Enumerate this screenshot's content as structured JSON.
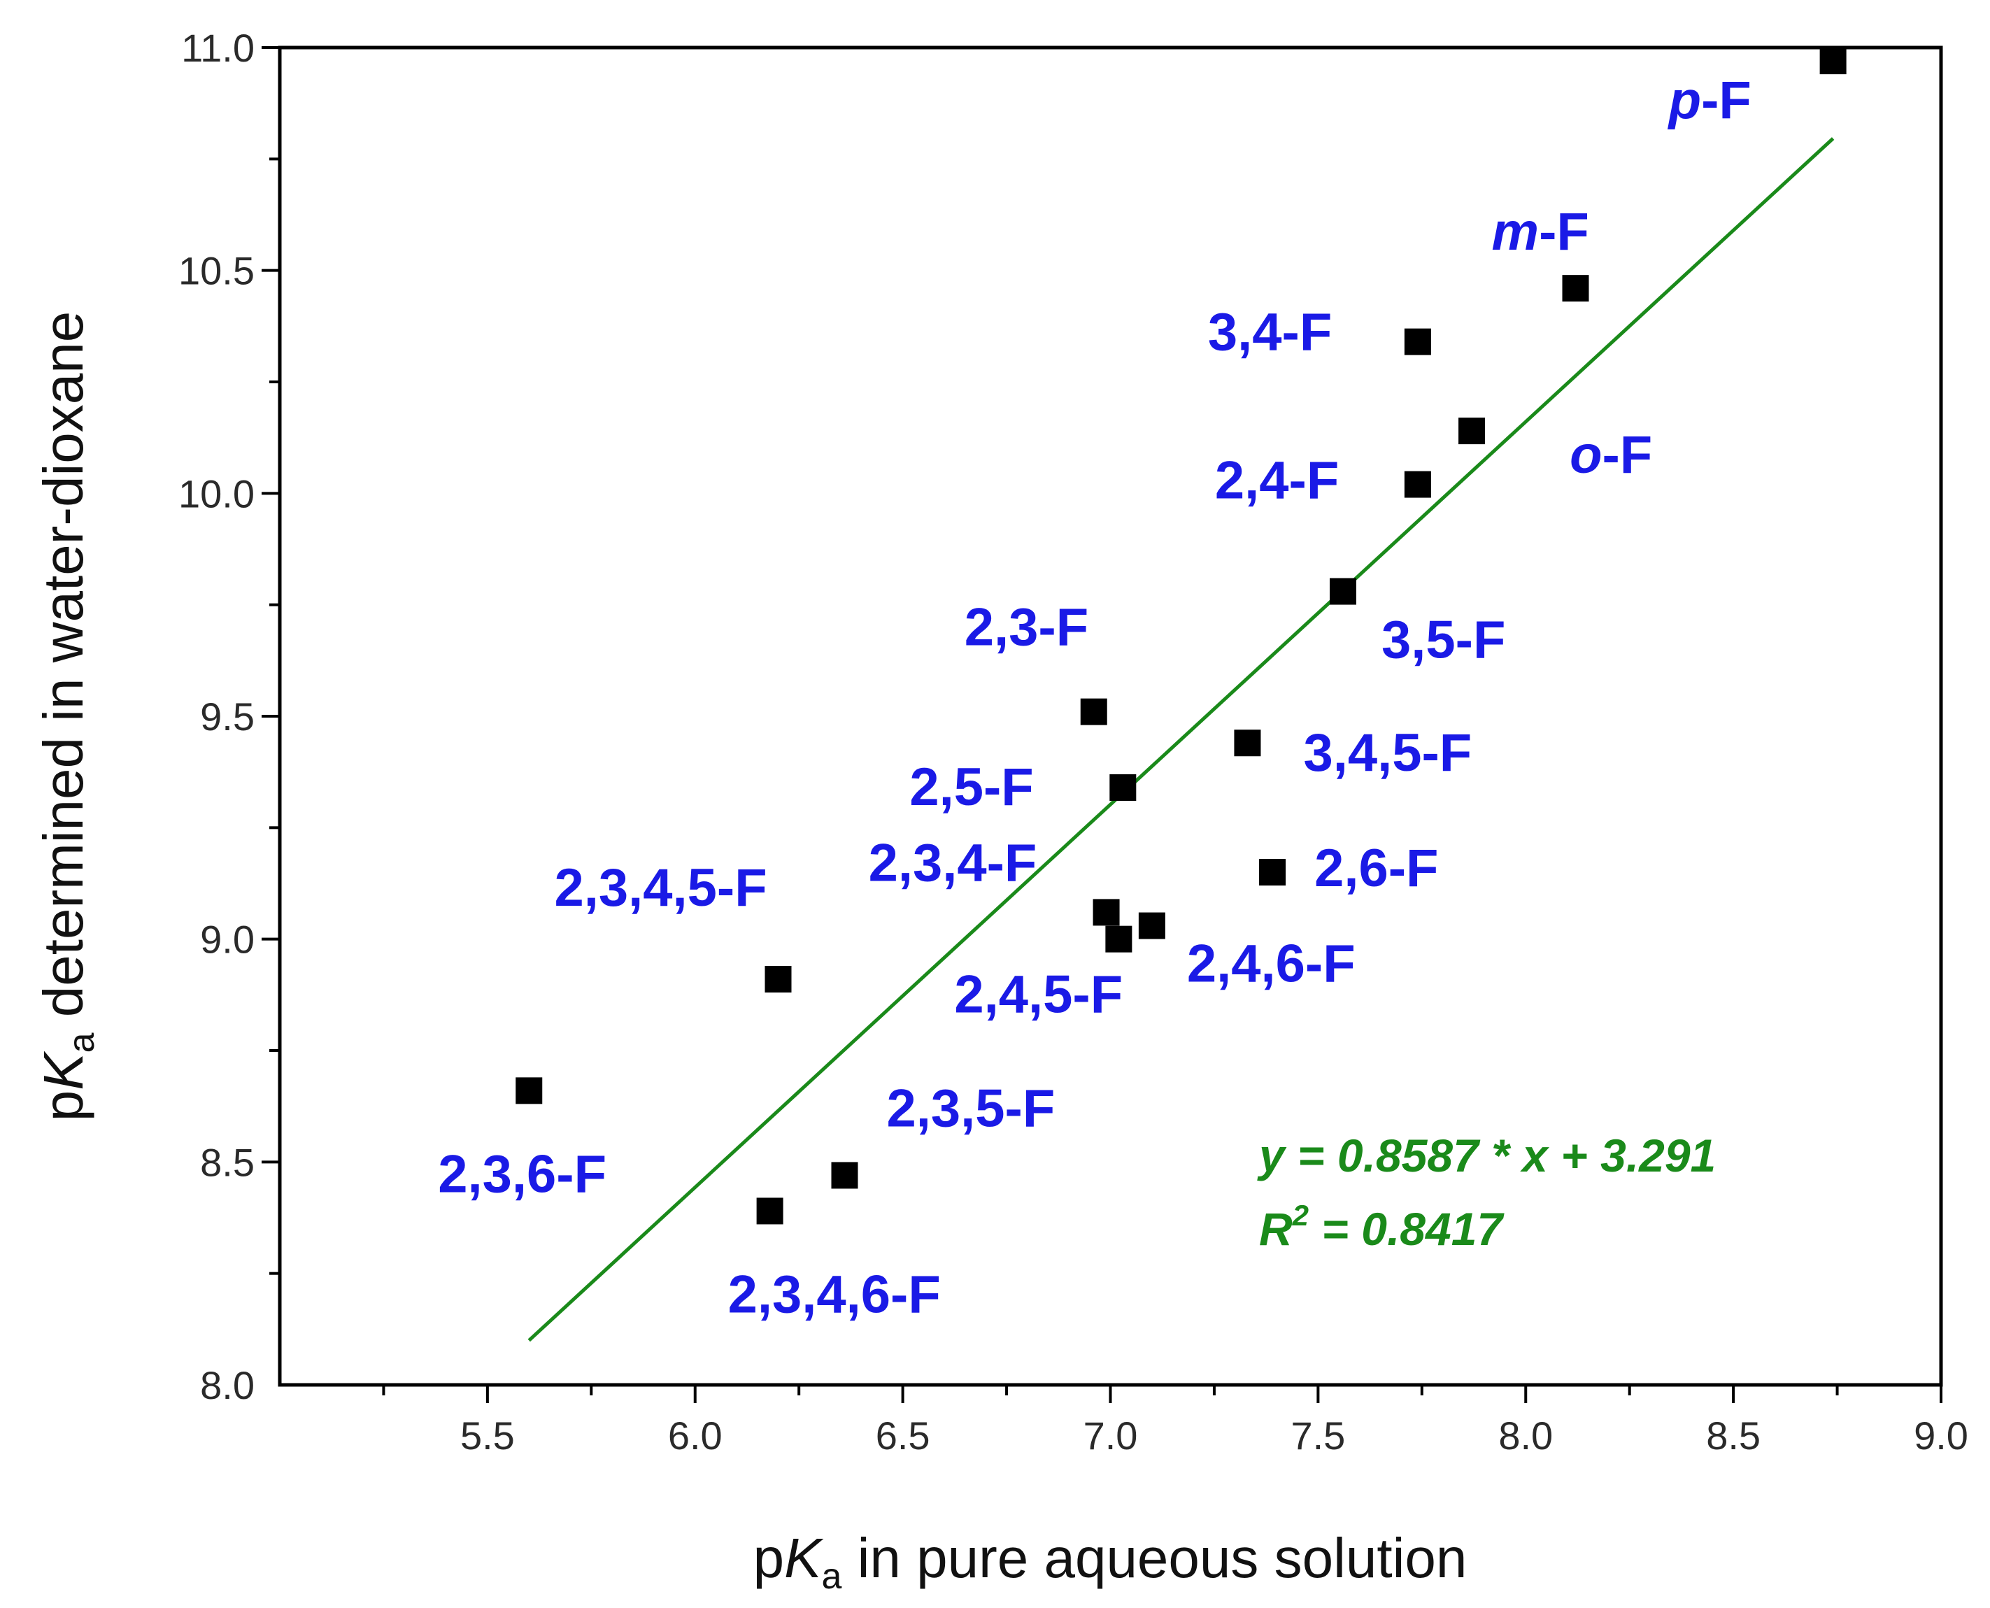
{
  "chart_data": {
    "type": "scatter",
    "xlabel": {
      "prefix": "p",
      "italic": "K",
      "sub": "a",
      "rest": " in pure aqueous solution"
    },
    "ylabel": {
      "prefix": "p",
      "italic": "K",
      "sub": "a",
      "rest": " determined in water-dioxane"
    },
    "xlim": [
      5.0,
      9.0
    ],
    "ylim": [
      8.0,
      11.0
    ],
    "xticks": [
      "5.5",
      "6.0",
      "6.5",
      "7.0",
      "7.5",
      "8.0",
      "8.5",
      "9.0"
    ],
    "yticks": [
      "8.0",
      "8.5",
      "9.0",
      "9.5",
      "10.0",
      "10.5",
      "11.0"
    ],
    "grid": false,
    "marker_color": "#000000",
    "label_color": "#1a1ae6",
    "fit_color": "#1a8a1a",
    "points": [
      {
        "x": 8.74,
        "y": 10.97,
        "prefix": "p",
        "rest": "-F"
      },
      {
        "x": 8.12,
        "y": 10.46,
        "prefix": "m",
        "rest": "-F"
      },
      {
        "x": 7.74,
        "y": 10.34,
        "prefix": "",
        "rest": "3,4-F"
      },
      {
        "x": 7.87,
        "y": 10.14,
        "prefix": "o",
        "rest": "-F"
      },
      {
        "x": 7.74,
        "y": 10.02,
        "prefix": "",
        "rest": "2,4-F"
      },
      {
        "x": 7.56,
        "y": 9.78,
        "prefix": "",
        "rest": "3,5-F"
      },
      {
        "x": 6.96,
        "y": 9.51,
        "prefix": "",
        "rest": "2,3-F"
      },
      {
        "x": 7.33,
        "y": 9.44,
        "prefix": "",
        "rest": "3,4,5-F"
      },
      {
        "x": 7.03,
        "y": 9.34,
        "prefix": "",
        "rest": "2,5-F"
      },
      {
        "x": 7.39,
        "y": 9.15,
        "prefix": "",
        "rest": "2,6-F"
      },
      {
        "x": 6.99,
        "y": 9.06,
        "prefix": "",
        "rest": "2,3,4-F"
      },
      {
        "x": 7.1,
        "y": 9.03,
        "prefix": "",
        "rest": "2,4,6-F"
      },
      {
        "x": 7.02,
        "y": 9.0,
        "prefix": "",
        "rest": "2,4,5-F"
      },
      {
        "x": 6.2,
        "y": 8.91,
        "prefix": "",
        "rest": "2,3,4,5-F"
      },
      {
        "x": 5.6,
        "y": 8.66,
        "prefix": "",
        "rest": "2,3,6-F"
      },
      {
        "x": 6.36,
        "y": 8.47,
        "prefix": "",
        "rest": "2,3,5-F"
      },
      {
        "x": 6.18,
        "y": 8.39,
        "prefix": "",
        "rest": "2,3,4,6-F"
      }
    ],
    "fit": {
      "slope": 0.8587,
      "intercept": 3.291,
      "x_range": [
        5.6,
        8.74
      ],
      "equation_text": "y = 0.8587 * x + 3.291",
      "r2_prefix": "R",
      "r2_sup": "2",
      "r2_rest": " = 0.8417"
    }
  }
}
